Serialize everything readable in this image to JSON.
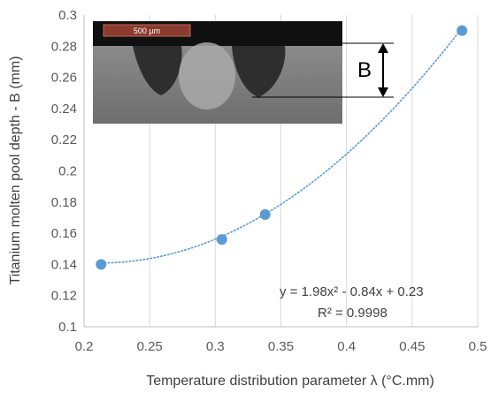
{
  "chart_data": {
    "type": "scatter",
    "xlabel": "Temperature distribution parameter  λ (°C.mm)",
    "ylabel": "Titanium molten pool depth - B (mm)",
    "xlim": [
      0.2,
      0.5
    ],
    "ylim": [
      0.1,
      0.3
    ],
    "xticks": [
      "0.2",
      "0.25",
      "0.3",
      "0.35",
      "0.4",
      "0.45",
      "0.5"
    ],
    "yticks": [
      "0.1",
      "0.12",
      "0.14",
      "0.16",
      "0.18",
      "0.2",
      "0.22",
      "0.24",
      "0.26",
      "0.28",
      "0.3"
    ],
    "grid": "vertical",
    "series": [
      {
        "x": [
          0.213,
          0.305,
          0.338,
          0.488
        ],
        "y": [
          0.14,
          0.156,
          0.172,
          0.29
        ],
        "color": "#5b9bd5"
      }
    ],
    "trendline": {
      "type": "polynomial",
      "coefficients": [
        1.98,
        -0.84,
        0.23
      ],
      "equation": "y = 1.98x² - 0.84x + 0.23",
      "r_squared": "R² = 0.9998",
      "color": "#5b9bd5",
      "style": "dotted"
    },
    "inset": {
      "scale_bar_label": "500 µm",
      "dimension_label": "B"
    }
  }
}
